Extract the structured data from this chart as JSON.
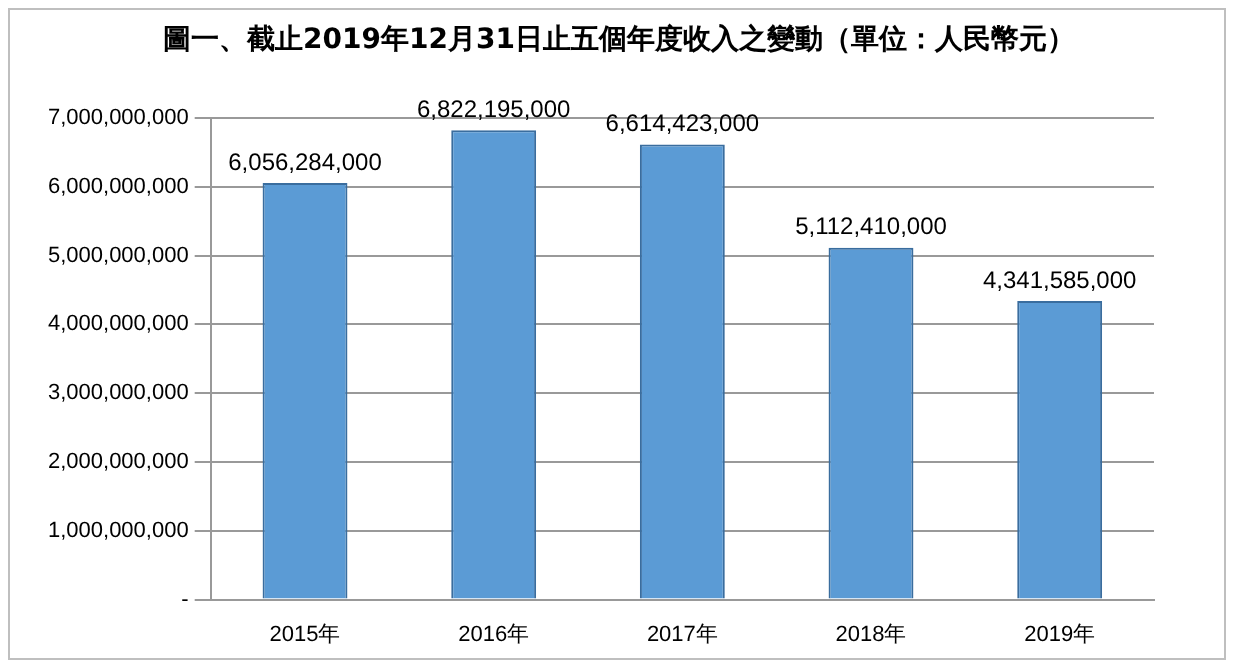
{
  "chart_data": {
    "type": "bar",
    "title": "圖一、截止2019年12月31日止五個年度收入之變動（單位：人民幣元）",
    "categories": [
      "2015年",
      "2016年",
      "2017年",
      "2018年",
      "2019年"
    ],
    "values": [
      6056284000,
      6822195000,
      6614423000,
      5112410000,
      4341585000
    ],
    "value_labels": [
      "6,056,284,000",
      "6,822,195,000",
      "6,614,423,000",
      "5,112,410,000",
      "4,341,585,000"
    ],
    "color": "#5b9bd5",
    "ylim": [
      0,
      7000000000
    ],
    "yticks": [
      {
        "value": 0,
        "label": "-"
      },
      {
        "value": 1000000000,
        "label": "1,000,000,000"
      },
      {
        "value": 2000000000,
        "label": "2,000,000,000"
      },
      {
        "value": 3000000000,
        "label": "3,000,000,000"
      },
      {
        "value": 4000000000,
        "label": "4,000,000,000"
      },
      {
        "value": 5000000000,
        "label": "5,000,000,000"
      },
      {
        "value": 6000000000,
        "label": "6,000,000,000"
      },
      {
        "value": 7000000000,
        "label": "7,000,000,000"
      }
    ],
    "grid": "y",
    "legend": false
  }
}
